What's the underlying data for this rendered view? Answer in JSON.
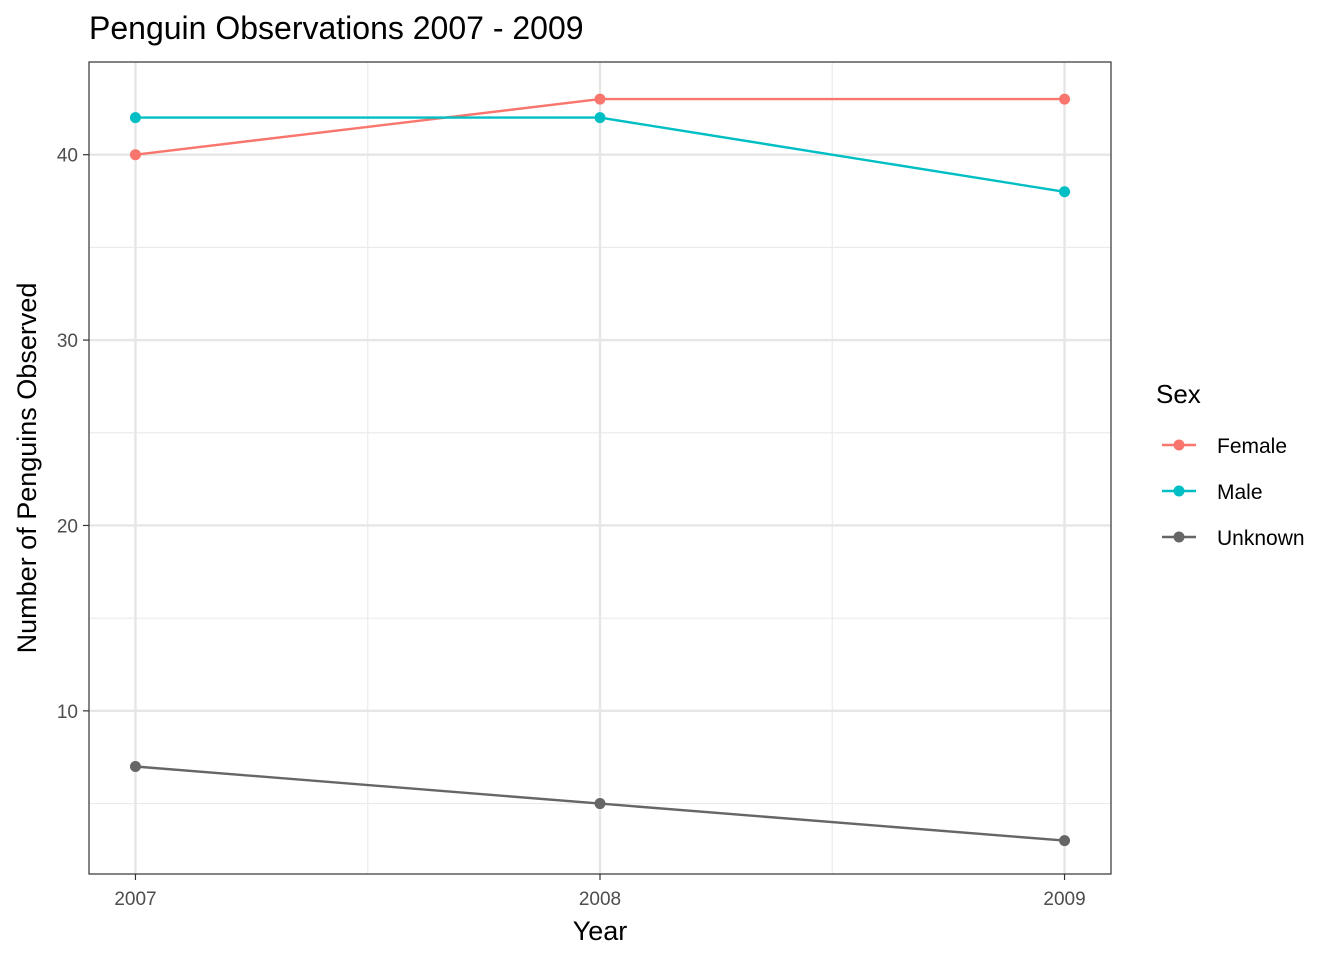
{
  "chart_data": {
    "type": "line",
    "title": "Penguin Observations 2007 - 2009",
    "xlabel": "Year",
    "ylabel": "Number of Penguins Observed",
    "x": [
      2007,
      2008,
      2009
    ],
    "x_ticks": [
      "2007",
      "2008",
      "2009"
    ],
    "y_ticks": [
      10,
      20,
      30,
      40
    ],
    "xlim": [
      2006.9,
      2009.1
    ],
    "ylim": [
      1.2,
      45
    ],
    "grid": true,
    "legend": {
      "title": "Sex",
      "placement": "right"
    },
    "series": [
      {
        "name": "Female",
        "values": [
          40,
          43,
          43
        ],
        "color": "#F8766D"
      },
      {
        "name": "Male",
        "values": [
          42,
          42,
          38
        ],
        "color": "#00BFC4"
      },
      {
        "name": "Unknown",
        "values": [
          7,
          5,
          3
        ],
        "color": "#666666"
      }
    ]
  }
}
